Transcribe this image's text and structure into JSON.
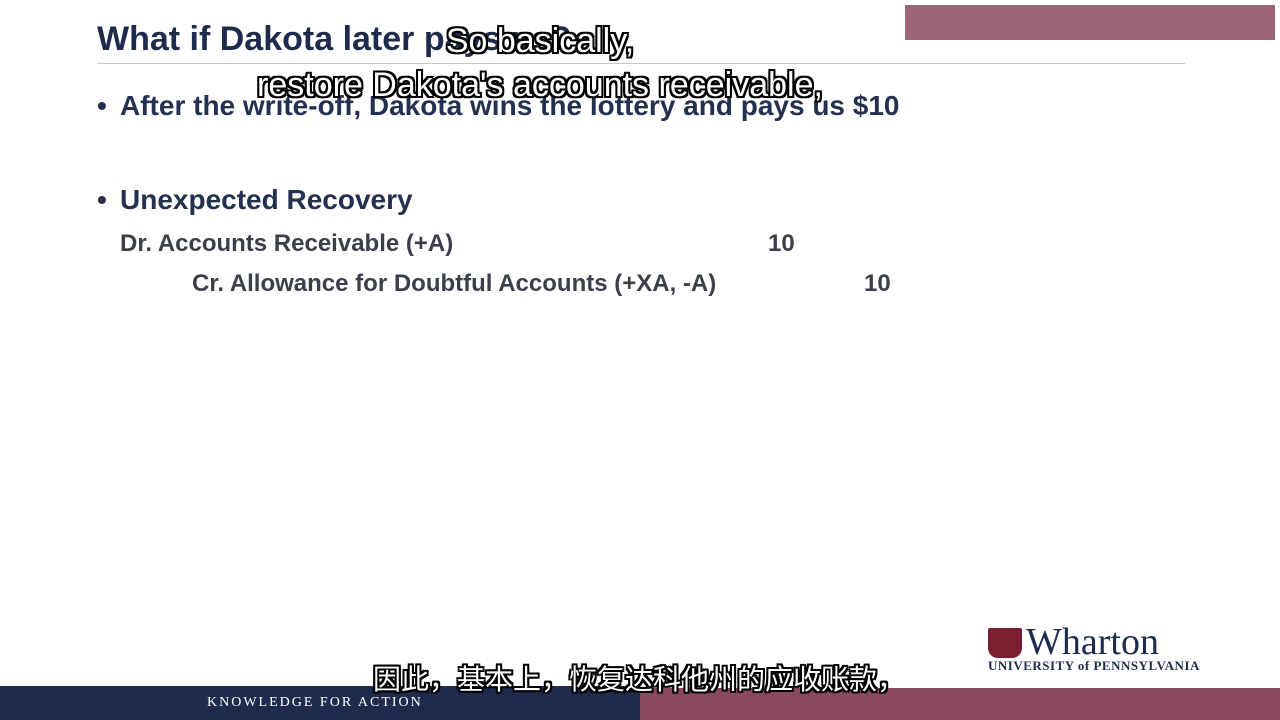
{
  "slide": {
    "title": "What if Dakota later pays us?",
    "bullets": [
      "After the write-off, Dakota wins the lottery and pays us $10",
      "Unexpected Recovery"
    ],
    "journal_entry": {
      "debit_label": "Dr. Accounts Receivable (+A)",
      "debit_amount": "10",
      "credit_label": "Cr. Allowance for Doubtful Accounts (+XA, -A)",
      "credit_amount": "10"
    }
  },
  "subtitles": {
    "english_line1": "So basically,",
    "english_line2": "restore Dakota's accounts receivable,",
    "chinese": "因此，基本上，恢复达科他州的应收账款，"
  },
  "branding": {
    "logo_word": "Wharton",
    "logo_sub": "UNIVERSITY of PENNSYLVANIA",
    "footer_tagline": "KNOWLEDGE FOR ACTION"
  },
  "colors": {
    "navy": "#1f2b4d",
    "maroon": "#8a4a5e"
  }
}
